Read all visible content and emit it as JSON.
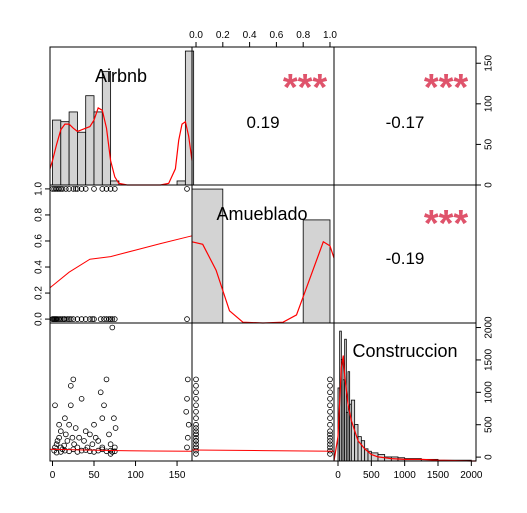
{
  "colors": {
    "density": "#FF0000",
    "smooth": "#FF0000",
    "hist_fill": "#D3D3D3",
    "stars": "#DF536B",
    "axis": "#000000"
  },
  "chart_data": {
    "type": "scatter",
    "variables": [
      "Airbnb",
      "Amueblado",
      "Construccion"
    ],
    "ranges": {
      "Airbnb": [
        -3,
        168
      ],
      "Amueblado": [
        -0.03,
        1.03
      ],
      "Construccion": [
        -60,
        2070
      ]
    },
    "ticks": {
      "Airbnb": [
        "0",
        "50",
        "100",
        "150"
      ],
      "Amueblado": [
        "0.0",
        "0.2",
        "0.4",
        "0.6",
        "0.8",
        "1.0"
      ],
      "Construccion": [
        "0",
        "500",
        "1000",
        "1500",
        "2000"
      ]
    },
    "hist_ylim": [
      0,
      170
    ],
    "hist_ticks": [
      "0",
      "50",
      "100",
      "150"
    ],
    "correlations": [
      {
        "pair": [
          "Airbnb",
          "Amueblado"
        ],
        "value": "0.19",
        "stars": "***"
      },
      {
        "pair": [
          "Airbnb",
          "Construccion"
        ],
        "value": "-0.17",
        "stars": "***"
      },
      {
        "pair": [
          "Amueblado",
          "Construccion"
        ],
        "value": "-0.19",
        "stars": "***"
      }
    ],
    "histograms": {
      "Airbnb": {
        "bins": [
          [
            0,
            10
          ],
          [
            10,
            20
          ],
          [
            20,
            30
          ],
          [
            30,
            40
          ],
          [
            40,
            50
          ],
          [
            50,
            60
          ],
          [
            60,
            70
          ],
          [
            70,
            80
          ],
          [
            150,
            160
          ],
          [
            160,
            170
          ]
        ],
        "counts": [
          80,
          78,
          90,
          65,
          110,
          90,
          140,
          5,
          5,
          165
        ],
        "density_x": [
          -3,
          0,
          5,
          10,
          15,
          20,
          25,
          30,
          35,
          40,
          45,
          50,
          55,
          60,
          65,
          70,
          75,
          80,
          90,
          100,
          110,
          120,
          130,
          140,
          148,
          152,
          156,
          160,
          164,
          168
        ],
        "density_y": [
          20,
          30,
          50,
          68,
          75,
          75,
          70,
          66,
          68,
          70,
          72,
          80,
          95,
          92,
          70,
          30,
          10,
          2,
          0,
          0,
          0,
          0,
          0,
          2,
          20,
          55,
          75,
          78,
          60,
          30
        ]
      },
      "Amueblado": {
        "bins": [
          [
            -0.03,
            0.2
          ],
          [
            0.8,
            1.0
          ]
        ],
        "counts": [
          165,
          127
        ],
        "density_x": [
          -0.03,
          0.05,
          0.15,
          0.25,
          0.35,
          0.5,
          0.65,
          0.75,
          0.85,
          0.95,
          1.0,
          1.03
        ],
        "density_y": [
          100,
          97,
          65,
          15,
          1,
          0,
          1,
          10,
          55,
          100,
          95,
          80
        ]
      },
      "Construccion": {
        "bins": [
          [
            0,
            25
          ],
          [
            25,
            50
          ],
          [
            50,
            75
          ],
          [
            75,
            100
          ],
          [
            100,
            125
          ],
          [
            125,
            150
          ],
          [
            150,
            175
          ],
          [
            175,
            200
          ],
          [
            200,
            250
          ],
          [
            250,
            300
          ],
          [
            300,
            350
          ],
          [
            350,
            400
          ],
          [
            400,
            450
          ],
          [
            450,
            500
          ],
          [
            500,
            600
          ],
          [
            600,
            700
          ],
          [
            700,
            800
          ],
          [
            800,
            900
          ],
          [
            900,
            1000
          ],
          [
            1000,
            1250
          ],
          [
            1250,
            1500
          ],
          [
            1500,
            2000
          ]
        ],
        "counts": [
          90,
          160,
          125,
          100,
          150,
          60,
          110,
          70,
          75,
          45,
          30,
          25,
          15,
          12,
          10,
          8,
          5,
          5,
          4,
          3,
          2,
          1
        ],
        "density_x": [
          -60,
          0,
          50,
          80,
          100,
          150,
          200,
          300,
          400,
          500,
          600,
          800,
          1000,
          1250,
          1500,
          2000,
          2070
        ],
        "density_y": [
          0,
          30,
          115,
          130,
          105,
          70,
          50,
          25,
          15,
          8,
          5,
          3,
          2,
          2,
          1,
          0,
          0
        ]
      }
    },
    "scatter": {
      "Airbnb_vs_Amueblado": {
        "x": [
          0,
          1,
          2,
          3,
          4,
          5,
          6,
          8,
          10,
          12,
          14,
          15,
          18,
          20,
          22,
          25,
          30,
          35,
          40,
          45,
          48,
          50,
          58,
          62,
          65,
          68,
          70,
          72,
          75,
          162,
          0,
          2,
          4,
          6,
          8,
          10,
          12,
          16,
          20,
          25,
          28,
          30,
          35,
          40,
          50,
          60,
          65,
          70,
          75,
          162
        ],
        "y": [
          0,
          0,
          0,
          0,
          0,
          0,
          0,
          0,
          0,
          0,
          0,
          0,
          0,
          0,
          0,
          0,
          0,
          0,
          0,
          0,
          0,
          0,
          0,
          0,
          0,
          0,
          0,
          0,
          0,
          0,
          1,
          1,
          1,
          1,
          1,
          1,
          1,
          1,
          1,
          1,
          1,
          1,
          1,
          1,
          1,
          1,
          1,
          1,
          1,
          1
        ],
        "smooth_x": [
          -3,
          20,
          45,
          70,
          100,
          130,
          168
        ],
        "smooth_y": [
          0.24,
          0.36,
          0.46,
          0.48,
          0.53,
          0.58,
          0.64
        ]
      },
      "Airbnb_vs_Construccion": {
        "x": [
          2,
          3,
          5,
          6,
          8,
          10,
          10,
          12,
          14,
          15,
          16,
          18,
          20,
          22,
          24,
          25,
          26,
          28,
          30,
          32,
          35,
          38,
          40,
          42,
          45,
          48,
          50,
          52,
          55,
          58,
          60,
          62,
          65,
          68,
          70,
          72,
          74,
          75,
          76,
          3,
          8,
          10,
          15,
          20,
          25,
          30,
          35,
          40,
          45,
          50,
          55,
          60,
          65,
          70,
          72,
          75,
          162,
          163,
          164,
          161,
          162,
          163,
          5,
          22,
          60,
          70
        ],
        "y": [
          100,
          150,
          200,
          250,
          300,
          150,
          400,
          120,
          180,
          600,
          350,
          250,
          500,
          800,
          300,
          1200,
          200,
          450,
          150,
          300,
          900,
          250,
          400,
          150,
          350,
          200,
          500,
          300,
          250,
          1000,
          150,
          800,
          1200,
          350,
          200,
          2000,
          600,
          150,
          450,
          800,
          500,
          80,
          100,
          90,
          120,
          80,
          100,
          110,
          90,
          80,
          100,
          120,
          90,
          100,
          80,
          90,
          150,
          300,
          500,
          700,
          900,
          1200,
          70,
          1100,
          600,
          50
        ],
        "smooth_x": [
          -3,
          40,
          80,
          120,
          168
        ],
        "smooth_y": [
          120,
          110,
          100,
          95,
          90
        ]
      },
      "Amueblado_vs_Construccion": {
        "x": [
          0,
          0,
          0,
          0,
          0,
          0,
          0,
          0,
          0,
          0,
          0,
          0,
          0,
          0,
          0,
          0,
          0,
          0,
          0,
          0,
          1,
          1,
          1,
          1,
          1,
          1,
          1,
          1,
          1,
          1,
          1,
          1,
          1,
          1,
          1,
          1
        ],
        "y": [
          50,
          100,
          150,
          200,
          250,
          300,
          350,
          400,
          450,
          500,
          600,
          700,
          800,
          900,
          1000,
          1100,
          1200,
          150,
          250,
          350,
          50,
          100,
          150,
          200,
          250,
          300,
          350,
          400,
          500,
          600,
          700,
          800,
          900,
          1000,
          1100,
          1200
        ],
        "smooth_x": [
          -0.03,
          0.5,
          1.03
        ],
        "smooth_y": [
          110,
          100,
          90
        ]
      }
    }
  }
}
